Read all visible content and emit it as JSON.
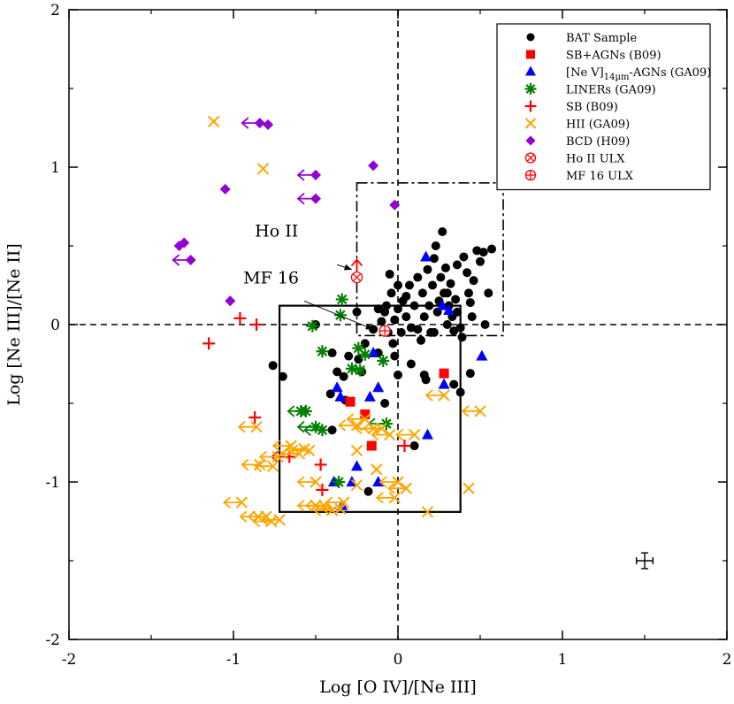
{
  "colors": {
    "bat": "#000000",
    "sb_agn": "#ff0000",
    "nev_agn": "#0000ff",
    "liner": "#008000",
    "sb": "#ff0000",
    "hii": "#ffa500",
    "bcd": "#9400d3",
    "ulx": "#ff0000"
  },
  "chart_data": {
    "type": "scatter",
    "title": "",
    "xlabel": "Log [O IV]/[Ne III]",
    "ylabel": "Log [Ne III]/[Ne II]",
    "xlim": [
      -2,
      2
    ],
    "ylim": [
      -2,
      2
    ],
    "xticks": [
      -2,
      -1,
      0,
      1,
      2
    ],
    "yticks": [
      -2,
      -1,
      0,
      1,
      2
    ],
    "xtick_labels": [
      "-2",
      "-1",
      "0",
      "1",
      "2"
    ],
    "ytick_labels": [
      "-2",
      "-1",
      "0",
      "1",
      "2"
    ],
    "grid": false,
    "legend_position": "top-right",
    "reference_lines": [
      {
        "type": "vertical-dashed",
        "x": 0
      },
      {
        "type": "horizontal-dashed",
        "y": 0
      }
    ],
    "boxes": [
      {
        "style": "solid",
        "x": [
          -0.72,
          0.38
        ],
        "y": [
          -1.19,
          0.12
        ]
      },
      {
        "style": "dash-dot",
        "x": [
          -0.25,
          0.64
        ],
        "y": [
          -0.07,
          0.9
        ]
      }
    ],
    "error_bar_example": {
      "x": 1.5,
      "y": -1.5,
      "dx": 0.05,
      "dy": 0.05
    },
    "series": [
      {
        "name": "BAT Sample",
        "marker": "circle",
        "color_key": "bat",
        "points": [
          [
            -0.76,
            -0.26
          ],
          [
            -0.7,
            -0.33
          ],
          [
            -0.5,
            0.0
          ],
          [
            -0.4,
            -0.18
          ],
          [
            -0.41,
            -0.44
          ],
          [
            -0.37,
            -0.3
          ],
          [
            -0.32,
            -0.48
          ],
          [
            -0.4,
            -0.67
          ],
          [
            -0.33,
            -0.33
          ],
          [
            -0.3,
            -0.2
          ],
          [
            -0.24,
            -0.22
          ],
          [
            -0.22,
            -0.3
          ],
          [
            -0.2,
            -0.12
          ],
          [
            -0.15,
            -0.03
          ],
          [
            -0.12,
            -0.18
          ],
          [
            -0.1,
            0.02
          ],
          [
            -0.08,
            0.08
          ],
          [
            -0.07,
            0.12
          ],
          [
            -0.06,
            -0.05
          ],
          [
            -0.05,
            0.32
          ],
          [
            -0.04,
            0.2
          ],
          [
            -0.03,
            -0.12
          ],
          [
            -0.02,
            0.03
          ],
          [
            0.0,
            0.1
          ],
          [
            0.0,
            0.25
          ],
          [
            0.02,
            -0.05
          ],
          [
            0.03,
            0.15
          ],
          [
            0.05,
            0.05
          ],
          [
            0.07,
            0.25
          ],
          [
            0.08,
            -0.02
          ],
          [
            0.1,
            0.12
          ],
          [
            0.12,
            0.3
          ],
          [
            0.14,
            -0.1
          ],
          [
            0.15,
            0.2
          ],
          [
            0.16,
            0.05
          ],
          [
            0.18,
            0.35
          ],
          [
            0.19,
            0.12
          ],
          [
            0.2,
            -0.05
          ],
          [
            0.21,
            0.25
          ],
          [
            0.22,
            0.42
          ],
          [
            0.23,
            0.5
          ],
          [
            0.24,
            0.08
          ],
          [
            0.25,
            0.15
          ],
          [
            0.26,
            0.3
          ],
          [
            0.27,
            0.59
          ],
          [
            0.28,
            0.2
          ],
          [
            0.29,
            0.36
          ],
          [
            0.3,
            0.0
          ],
          [
            0.31,
            0.12
          ],
          [
            0.32,
            0.26
          ],
          [
            0.33,
            0.05
          ],
          [
            0.34,
            -0.04
          ],
          [
            0.35,
            0.16
          ],
          [
            0.36,
            0.08
          ],
          [
            0.38,
            -0.02
          ],
          [
            0.39,
            -0.08
          ],
          [
            0.4,
            0.43
          ],
          [
            0.42,
            0.33
          ],
          [
            0.43,
            0.2
          ],
          [
            0.44,
            0.14
          ],
          [
            0.45,
            0.05
          ],
          [
            0.46,
            0.28
          ],
          [
            0.48,
            0.47
          ],
          [
            0.5,
            0.4
          ],
          [
            0.52,
            0.46
          ],
          [
            0.53,
            0.0
          ],
          [
            0.55,
            0.2
          ],
          [
            0.57,
            0.48
          ],
          [
            0.34,
            -0.38
          ],
          [
            0.38,
            -0.43
          ],
          [
            0.44,
            -0.31
          ],
          [
            0.16,
            -0.32
          ],
          [
            0.17,
            -0.35
          ],
          [
            0.08,
            -0.25
          ],
          [
            0.0,
            -0.32
          ],
          [
            -0.08,
            -0.5
          ],
          [
            -0.18,
            -1.06
          ],
          [
            0.1,
            -0.77
          ],
          [
            -0.25,
            0.08
          ],
          [
            -0.12,
            0.1
          ],
          [
            -0.02,
            -0.2
          ],
          [
            0.05,
            0.18
          ],
          [
            0.12,
            -0.03
          ],
          [
            0.22,
            -0.05
          ],
          [
            0.3,
            0.2
          ],
          [
            0.36,
            0.38
          ]
        ]
      },
      {
        "name": "SB+AGNs (B09)",
        "marker": "square",
        "color_key": "sb_agn",
        "points": [
          [
            -0.29,
            -0.49
          ],
          [
            -0.2,
            -0.57
          ],
          [
            -0.16,
            -0.77
          ],
          [
            0.28,
            -0.31
          ]
        ]
      },
      {
        "name": "[Ne V]14µm-AGNs (GA09)",
        "marker": "triangle",
        "color_key": "nev_agn",
        "points": [
          [
            -0.37,
            -0.4
          ],
          [
            -0.28,
            -1.0
          ],
          [
            -0.25,
            -0.9
          ],
          [
            -0.17,
            -0.46
          ],
          [
            -0.12,
            -0.4
          ],
          [
            -0.12,
            -1.0
          ],
          [
            0.17,
            0.43
          ],
          [
            0.27,
            0.12
          ],
          [
            0.28,
            -0.38
          ],
          [
            0.51,
            -0.2
          ],
          [
            -0.34,
            -1.15
          ],
          [
            0.18,
            -0.7
          ],
          [
            -0.35,
            -0.46
          ],
          [
            -0.15,
            -0.18
          ],
          [
            -0.39,
            -1.0
          ],
          [
            0.31,
            0.09
          ]
        ]
      },
      {
        "name": "LINERs (GA09)",
        "marker": "asterisk",
        "color_key": "liner",
        "points": [
          [
            -0.34,
            0.16
          ],
          [
            -0.35,
            0.06
          ],
          [
            -0.52,
            -0.01
          ],
          [
            -0.46,
            -0.17
          ],
          [
            -0.24,
            -0.15
          ],
          [
            -0.2,
            -0.19
          ],
          [
            -0.28,
            -0.28
          ],
          [
            -0.23,
            -0.29
          ],
          [
            -0.09,
            -0.23
          ],
          [
            -0.07,
            -0.63
          ],
          [
            -0.5,
            -0.65
          ],
          [
            -0.46,
            -0.67
          ],
          [
            -0.56,
            -0.55
          ],
          [
            -0.59,
            -0.55
          ],
          [
            -0.36,
            -1.0
          ]
        ],
        "left_arrow_indices": [
          9,
          10,
          11,
          12
        ]
      },
      {
        "name": "SB (B09)",
        "marker": "plus",
        "color_key": "sb",
        "points": [
          [
            -1.15,
            -0.12
          ],
          [
            -0.96,
            0.04
          ],
          [
            -0.86,
            0.0
          ],
          [
            -0.87,
            -0.59
          ],
          [
            -0.66,
            -0.84
          ],
          [
            -0.47,
            -0.89
          ],
          [
            -0.46,
            -1.05
          ],
          [
            0.04,
            -0.77
          ]
        ],
        "left_arrow_indices": [
          4
        ]
      },
      {
        "name": "HII (GA09)",
        "marker": "x",
        "color_key": "hii",
        "points": [
          [
            -1.12,
            1.29
          ],
          [
            -0.82,
            0.99
          ],
          [
            -0.86,
            -0.65
          ],
          [
            -0.84,
            -0.89
          ],
          [
            -0.73,
            -0.84
          ],
          [
            -0.76,
            -0.9
          ],
          [
            -0.65,
            -0.77
          ],
          [
            -0.6,
            -0.82
          ],
          [
            -0.57,
            -0.79
          ],
          [
            -0.54,
            -0.8
          ],
          [
            -0.5,
            -1.0
          ],
          [
            -0.5,
            -1.15
          ],
          [
            -0.45,
            -1.15
          ],
          [
            -0.4,
            -1.18
          ],
          [
            -0.35,
            -1.17
          ],
          [
            -0.33,
            -1.13
          ],
          [
            -0.25,
            -0.64
          ],
          [
            -0.2,
            -0.6
          ],
          [
            -0.15,
            -0.66
          ],
          [
            -0.1,
            -0.66
          ],
          [
            -0.05,
            -0.7
          ],
          [
            0.1,
            -0.7
          ],
          [
            0.0,
            -1.0
          ],
          [
            0.05,
            -1.04
          ],
          [
            -0.25,
            -0.8
          ],
          [
            -0.25,
            -1.02
          ],
          [
            -0.13,
            -0.92
          ],
          [
            -0.02,
            -1.1
          ],
          [
            0.28,
            -0.45
          ],
          [
            0.5,
            -0.55
          ],
          [
            0.43,
            -1.04
          ],
          [
            0.18,
            -1.19
          ],
          [
            -0.95,
            -1.13
          ],
          [
            -0.85,
            -1.22
          ],
          [
            -0.8,
            -1.22
          ],
          [
            -0.72,
            -1.24
          ],
          [
            -0.77,
            -1.25
          ]
        ],
        "left_arrow_indices": [
          2,
          3,
          4,
          5,
          6,
          7,
          8,
          9,
          10,
          11,
          12,
          13,
          14,
          15,
          16,
          17,
          18,
          19,
          20,
          21,
          22,
          23,
          27,
          28,
          29,
          32,
          33,
          34,
          35,
          36
        ]
      },
      {
        "name": "BCD (H09)",
        "marker": "diamond",
        "color_key": "bcd",
        "points": [
          [
            -0.84,
            1.28
          ],
          [
            -0.79,
            1.27
          ],
          [
            -0.15,
            1.01
          ],
          [
            -1.05,
            0.86
          ],
          [
            -0.5,
            0.95
          ],
          [
            -0.5,
            0.8
          ],
          [
            -0.02,
            0.76
          ],
          [
            -1.33,
            0.5
          ],
          [
            -1.3,
            0.52
          ],
          [
            -1.26,
            0.41
          ],
          [
            -1.02,
            0.15
          ]
        ],
        "left_arrow_indices": [
          0,
          4,
          5,
          9
        ]
      },
      {
        "name": "Ho II ULX",
        "marker": "circle-x",
        "color_key": "ulx",
        "points": [
          [
            -0.25,
            0.3
          ]
        ],
        "up_arrow_indices": [
          0
        ]
      },
      {
        "name": "MF 16 ULX",
        "marker": "circle-plus",
        "color_key": "ulx",
        "points": [
          [
            -0.08,
            -0.04
          ]
        ]
      }
    ],
    "annotations": [
      {
        "text": "Ho II",
        "text_at": [
          -0.87,
          0.56
        ],
        "arrow_from": [
          -0.37,
          0.38
        ],
        "arrow_to": [
          -0.28,
          0.35
        ]
      },
      {
        "text": "MF 16",
        "text_at": [
          -0.94,
          0.26
        ],
        "arrow_from": [
          -0.57,
          0.15
        ],
        "arrow_to": [
          -0.15,
          -0.03
        ]
      }
    ]
  }
}
